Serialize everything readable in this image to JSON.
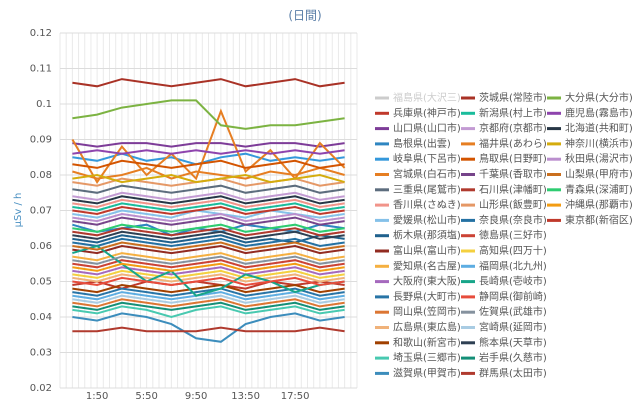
{
  "chart_data": {
    "type": "line",
    "title": "(日間)",
    "y_label": "μSv / h",
    "categories": [
      null,
      "1:50",
      null,
      "5:50",
      null,
      "9:50",
      null,
      "13:50",
      null,
      "17:50",
      null,
      null
    ],
    "ylim": [
      0.02,
      0.12
    ],
    "yticks": [
      0.02,
      0.03,
      0.04,
      0.05,
      0.06,
      0.07,
      0.08,
      0.09,
      0.1,
      0.11,
      0.12
    ],
    "grid": true,
    "series": [
      {
        "name": "福島県(大沢三)",
        "color": "#cccccc",
        "values": [
          null,
          null,
          null,
          null,
          null,
          null,
          null,
          null,
          null,
          null,
          null,
          null
        ]
      },
      {
        "name": "兵庫県(神戸市)",
        "color": "#c0392b",
        "values": [
          0.049,
          0.05,
          0.048,
          0.05,
          0.049,
          0.05,
          0.049,
          0.048,
          0.05,
          0.049,
          0.05,
          0.049
        ]
      },
      {
        "name": "山口県(山口市)",
        "color": "#7d3c98",
        "values": [
          0.089,
          0.088,
          0.089,
          0.089,
          0.088,
          0.089,
          0.089,
          0.088,
          0.089,
          0.089,
          0.088,
          0.089
        ]
      },
      {
        "name": "島根県(出雲)",
        "color": "#2e86c1",
        "values": [
          0.066,
          0.064,
          0.065,
          0.066,
          0.063,
          0.065,
          0.064,
          0.066,
          0.065,
          0.064,
          0.066,
          0.065
        ]
      },
      {
        "name": "岐阜県(下呂市)",
        "color": "#3498db",
        "values": [
          0.085,
          0.084,
          0.086,
          0.084,
          0.085,
          0.083,
          0.085,
          0.086,
          0.084,
          0.085,
          0.084,
          0.085
        ]
      },
      {
        "name": "宮城県(白石市)",
        "color": "#e67e22",
        "values": [
          0.081,
          0.079,
          0.08,
          0.082,
          0.079,
          0.081,
          0.08,
          0.079,
          0.081,
          0.08,
          0.082,
          0.08
        ]
      },
      {
        "name": "三重県(尾鷲市)",
        "color": "#5d6d7e",
        "values": [
          0.076,
          0.075,
          0.077,
          0.076,
          0.075,
          0.076,
          0.077,
          0.075,
          0.076,
          0.077,
          0.075,
          0.076
        ]
      },
      {
        "name": "香川県(さぬき)",
        "color": "#f1948a",
        "values": [
          0.072,
          0.071,
          0.073,
          0.072,
          0.071,
          0.072,
          0.073,
          0.071,
          0.072,
          0.073,
          0.071,
          0.072
        ]
      },
      {
        "name": "愛媛県(松山市)",
        "color": "#85c1e9",
        "values": [
          0.069,
          0.068,
          0.07,
          0.069,
          0.068,
          0.07,
          0.069,
          0.068,
          0.07,
          0.069,
          0.068,
          0.069
        ]
      },
      {
        "name": "栃木県(那須塩)",
        "color": "#1f618d",
        "values": [
          0.062,
          0.061,
          0.063,
          0.062,
          0.061,
          0.062,
          0.063,
          0.061,
          0.062,
          0.061,
          0.063,
          0.062
        ]
      },
      {
        "name": "富山県(富山市)",
        "color": "#922b21",
        "values": [
          0.059,
          0.058,
          0.06,
          0.059,
          0.058,
          0.059,
          0.06,
          0.058,
          0.059,
          0.06,
          0.058,
          0.059
        ]
      },
      {
        "name": "愛知県(名古屋)",
        "color": "#f5b041",
        "values": [
          0.057,
          0.056,
          0.058,
          0.057,
          0.056,
          0.057,
          0.058,
          0.056,
          0.057,
          0.058,
          0.056,
          0.057
        ]
      },
      {
        "name": "大阪府(東大阪)",
        "color": "#a569bd",
        "values": [
          0.053,
          0.052,
          0.054,
          0.053,
          0.052,
          0.053,
          0.054,
          0.052,
          0.053,
          0.054,
          0.052,
          0.053
        ]
      },
      {
        "name": "長野県(大町市)",
        "color": "#2874a6",
        "values": [
          0.047,
          0.046,
          0.048,
          0.047,
          0.046,
          0.047,
          0.048,
          0.046,
          0.047,
          0.048,
          0.046,
          0.047
        ]
      },
      {
        "name": "岡山県(笠岡市)",
        "color": "#dc7633",
        "values": [
          0.044,
          0.043,
          0.045,
          0.044,
          0.043,
          0.044,
          0.045,
          0.043,
          0.044,
          0.045,
          0.043,
          0.044
        ]
      },
      {
        "name": "広島県(東広島)",
        "color": "#f0b27a",
        "values": [
          0.051,
          0.05,
          0.052,
          0.051,
          0.05,
          0.051,
          0.052,
          0.05,
          0.051,
          0.052,
          0.05,
          0.051
        ]
      },
      {
        "name": "和歌山(新宮市)",
        "color": "#a04000",
        "values": [
          0.048,
          0.047,
          0.049,
          0.048,
          0.047,
          0.048,
          0.049,
          0.047,
          0.048,
          0.049,
          0.047,
          0.048
        ]
      },
      {
        "name": "埼玉県(三郷市)",
        "color": "#48c9b0",
        "values": [
          0.042,
          0.041,
          0.043,
          0.042,
          0.04,
          0.042,
          0.043,
          0.041,
          0.042,
          0.043,
          0.041,
          0.042
        ]
      },
      {
        "name": "滋賀県(甲賀市)",
        "color": "#3c8dbc",
        "values": [
          0.04,
          0.039,
          0.041,
          0.04,
          0.038,
          0.034,
          0.033,
          0.038,
          0.04,
          0.041,
          0.039,
          0.04
        ]
      },
      {
        "name": "茨城県(常陸市)",
        "color": "#a93226",
        "values": [
          0.106,
          0.105,
          0.107,
          0.106,
          0.105,
          0.106,
          0.107,
          0.105,
          0.106,
          0.107,
          0.105,
          0.106
        ]
      },
      {
        "name": "新潟県(村上市)",
        "color": "#1abc9c",
        "values": [
          0.071,
          0.07,
          0.072,
          0.071,
          0.07,
          0.071,
          0.072,
          0.07,
          0.071,
          0.072,
          0.07,
          0.071
        ]
      },
      {
        "name": "京都府(京都市)",
        "color": "#c39bd3",
        "values": [
          0.074,
          0.073,
          0.075,
          0.074,
          0.073,
          0.074,
          0.075,
          0.073,
          0.074,
          0.075,
          0.073,
          0.074
        ]
      },
      {
        "name": "福井県(あわら)",
        "color": "#e67e22",
        "values": [
          0.09,
          0.078,
          0.088,
          0.08,
          0.086,
          0.079,
          0.098,
          0.081,
          0.087,
          0.079,
          0.089,
          0.082
        ]
      },
      {
        "name": "鳥取県(日野町)",
        "color": "#d35400",
        "values": [
          0.083,
          0.082,
          0.084,
          0.083,
          0.082,
          0.083,
          0.084,
          0.082,
          0.083,
          0.084,
          0.082,
          0.083
        ]
      },
      {
        "name": "千葉県(香取市)",
        "color": "#76448a",
        "values": [
          0.067,
          0.066,
          0.068,
          0.067,
          0.066,
          0.067,
          0.068,
          0.066,
          0.067,
          0.068,
          0.066,
          0.067
        ]
      },
      {
        "name": "石川県(津幡町)",
        "color": "#b03a2e",
        "values": [
          0.064,
          0.063,
          0.065,
          0.064,
          0.063,
          0.064,
          0.065,
          0.063,
          0.064,
          0.065,
          0.063,
          0.064
        ]
      },
      {
        "name": "山形県(飯豊町)",
        "color": "#e59866",
        "values": [
          0.078,
          0.077,
          0.079,
          0.078,
          0.077,
          0.078,
          0.079,
          0.077,
          0.078,
          0.079,
          0.077,
          0.078
        ]
      },
      {
        "name": "奈良県(奈良市)",
        "color": "#2471a3",
        "values": [
          0.061,
          0.06,
          0.062,
          0.061,
          0.06,
          0.061,
          0.062,
          0.06,
          0.061,
          0.062,
          0.06,
          0.061
        ]
      },
      {
        "name": "徳島県(三好市)",
        "color": "#cb4335",
        "values": [
          0.055,
          0.054,
          0.056,
          0.055,
          0.054,
          0.055,
          0.056,
          0.054,
          0.055,
          0.056,
          0.054,
          0.055
        ]
      },
      {
        "name": "高知県(四万十)",
        "color": "#f4d03f",
        "values": [
          0.052,
          0.051,
          0.053,
          0.052,
          0.051,
          0.052,
          0.053,
          0.051,
          0.052,
          0.053,
          0.051,
          0.052
        ]
      },
      {
        "name": "福岡県(北九州)",
        "color": "#5dade2",
        "values": [
          0.046,
          0.045,
          0.047,
          0.046,
          0.045,
          0.046,
          0.047,
          0.045,
          0.046,
          0.047,
          0.045,
          0.046
        ]
      },
      {
        "name": "長崎県(壱岐市)",
        "color": "#17a589",
        "values": [
          0.058,
          0.06,
          0.055,
          0.05,
          0.053,
          0.046,
          0.048,
          0.052,
          0.05,
          0.047,
          0.049,
          0.05
        ]
      },
      {
        "name": "静岡県(御前崎)",
        "color": "#e74c3c",
        "values": [
          0.05,
          0.049,
          0.051,
          0.05,
          0.049,
          0.05,
          0.051,
          0.049,
          0.05,
          0.051,
          0.049,
          0.05
        ]
      },
      {
        "name": "佐賀県(武雄市)",
        "color": "#85929e",
        "values": [
          0.056,
          0.055,
          0.057,
          0.056,
          0.055,
          0.056,
          0.057,
          0.055,
          0.056,
          0.057,
          0.055,
          0.056
        ]
      },
      {
        "name": "宮崎県(延岡市)",
        "color": "#a9cce3",
        "values": [
          0.045,
          0.044,
          0.046,
          0.045,
          0.044,
          0.045,
          0.046,
          0.044,
          0.045,
          0.046,
          0.044,
          0.045
        ]
      },
      {
        "name": "熊本県(天草市)",
        "color": "#2e4053",
        "values": [
          0.063,
          0.062,
          0.064,
          0.063,
          0.062,
          0.063,
          0.064,
          0.062,
          0.063,
          0.064,
          0.062,
          0.063
        ]
      },
      {
        "name": "岩手県(久慈市)",
        "color": "#148f77",
        "values": [
          0.043,
          0.042,
          0.044,
          0.043,
          0.042,
          0.043,
          0.044,
          0.042,
          0.043,
          0.044,
          0.042,
          0.043
        ]
      },
      {
        "name": "群馬県(太田市)",
        "color": "#b03a2e",
        "values": [
          0.036,
          0.036,
          0.037,
          0.036,
          0.036,
          0.036,
          0.037,
          0.036,
          0.036,
          0.036,
          0.037,
          0.036
        ]
      },
      {
        "name": "大分県(大分市)",
        "color": "#7cb342",
        "values": [
          0.096,
          0.097,
          0.099,
          0.1,
          0.101,
          0.101,
          0.094,
          0.093,
          0.094,
          0.094,
          0.095,
          0.096
        ]
      },
      {
        "name": "鹿児島(霧島市)",
        "color": "#8e44ad",
        "values": [
          0.086,
          0.087,
          0.086,
          0.087,
          0.086,
          0.087,
          0.086,
          0.087,
          0.086,
          0.087,
          0.086,
          0.087
        ]
      },
      {
        "name": "北海道(共和町)",
        "color": "#273746",
        "values": [
          0.073,
          0.072,
          0.074,
          0.073,
          0.072,
          0.073,
          0.074,
          0.072,
          0.073,
          0.074,
          0.072,
          0.073
        ]
      },
      {
        "name": "神奈川(横浜市)",
        "color": "#d4ac0d",
        "values": [
          0.079,
          0.08,
          0.078,
          0.079,
          0.08,
          0.078,
          0.079,
          0.08,
          0.078,
          0.079,
          0.08,
          0.078
        ]
      },
      {
        "name": "秋田県(湯沢市)",
        "color": "#bb8fce",
        "values": [
          0.068,
          0.067,
          0.069,
          0.068,
          0.067,
          0.068,
          0.069,
          0.067,
          0.068,
          0.069,
          0.067,
          0.068
        ]
      },
      {
        "name": "山梨県(甲府市)",
        "color": "#ca6f1e",
        "values": [
          0.06,
          0.059,
          0.061,
          0.06,
          0.059,
          0.06,
          0.061,
          0.059,
          0.06,
          0.061,
          0.059,
          0.06
        ]
      },
      {
        "name": "青森県(深浦町)",
        "color": "#2ecc71",
        "values": [
          0.065,
          0.064,
          0.066,
          0.065,
          0.064,
          0.065,
          0.066,
          0.064,
          0.065,
          0.066,
          0.064,
          0.065
        ]
      },
      {
        "name": "沖縄県(那覇市)",
        "color": "#f39c12",
        "values": [
          0.054,
          0.053,
          0.055,
          0.054,
          0.053,
          0.054,
          0.055,
          0.053,
          0.054,
          0.055,
          0.053,
          0.054
        ]
      },
      {
        "name": "東京都(新宿区)",
        "color": "#c0392b",
        "values": [
          0.07,
          0.069,
          0.071,
          0.07,
          0.069,
          0.07,
          0.071,
          0.069,
          0.07,
          0.071,
          0.069,
          0.07
        ]
      }
    ]
  }
}
